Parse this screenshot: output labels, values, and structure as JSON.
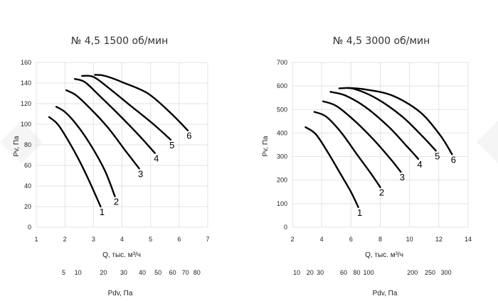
{
  "chart_data": [
    {
      "type": "line",
      "title": "№ 4,5 1500 об/мин",
      "xlabel": "Q, тыс. м³/ч",
      "ylabel": "Pv, Па",
      "xlim": [
        1,
        7
      ],
      "ylim": [
        0,
        160
      ],
      "x_ticks": [
        "1",
        "2",
        "3",
        "4",
        "5",
        "6",
        "7"
      ],
      "y_ticks": [
        "0",
        "20",
        "40",
        "60",
        "80",
        "100",
        "120",
        "140",
        "160"
      ],
      "grid": true,
      "secondary_axis": {
        "label": "Pdv, Па",
        "ticks": [
          {
            "label": "5",
            "q": 1.96
          },
          {
            "label": "10",
            "q": 2.46
          },
          {
            "label": "20",
            "q": 3.35
          },
          {
            "label": "30",
            "q": 4.06
          },
          {
            "label": "40",
            "q": 4.71
          },
          {
            "label": "50",
            "q": 5.26
          },
          {
            "label": "60",
            "q": 5.77
          },
          {
            "label": "70",
            "q": 6.22
          },
          {
            "label": "80",
            "q": 6.62
          }
        ]
      },
      "series": [
        {
          "name": "1",
          "x": [
            1.45,
            1.75,
            2.1,
            2.5,
            2.9,
            3.25
          ],
          "y": [
            107,
            100,
            85,
            65,
            42,
            20
          ]
        },
        {
          "name": "2",
          "x": [
            1.7,
            2.0,
            2.4,
            2.9,
            3.4,
            3.75
          ],
          "y": [
            117,
            112,
            100,
            80,
            55,
            30
          ]
        },
        {
          "name": "3",
          "x": [
            2.05,
            2.4,
            2.9,
            3.5,
            4.1,
            4.6
          ],
          "y": [
            133,
            128,
            115,
            97,
            75,
            57
          ]
        },
        {
          "name": "4",
          "x": [
            2.35,
            2.7,
            3.2,
            3.9,
            4.6,
            5.15
          ],
          "y": [
            144,
            141,
            128,
            109,
            89,
            72
          ]
        },
        {
          "name": "5",
          "x": [
            2.6,
            3.0,
            3.5,
            4.3,
            5.1,
            5.7
          ],
          "y": [
            147,
            146,
            136,
            118,
            100,
            85
          ]
        },
        {
          "name": "6",
          "x": [
            3.05,
            3.4,
            4.0,
            4.9,
            5.7,
            6.3
          ],
          "y": [
            148,
            147,
            141,
            130,
            111,
            94
          ]
        }
      ]
    },
    {
      "type": "line",
      "title": "№ 4,5 3000 об/мин",
      "xlabel": "Q, тыс. м³/ч",
      "ylabel": "Pv, Па",
      "xlim": [
        2,
        14
      ],
      "ylim": [
        0,
        700
      ],
      "x_ticks": [
        "2",
        "4",
        "6",
        "8",
        "10",
        "12",
        "14"
      ],
      "y_ticks": [
        "0",
        "100",
        "200",
        "300",
        "400",
        "500",
        "600",
        "700"
      ],
      "grid": true,
      "secondary_axis": {
        "label": "Pdv, Па",
        "ticks": [
          {
            "label": "10",
            "q": 2.3
          },
          {
            "label": "20",
            "q": 3.2
          },
          {
            "label": "30",
            "q": 3.9
          },
          {
            "label": "60",
            "q": 5.5
          },
          {
            "label": "80",
            "q": 6.4
          },
          {
            "label": "100",
            "q": 7.2
          },
          {
            "label": "200",
            "q": 10.2
          },
          {
            "label": "250",
            "q": 11.4
          },
          {
            "label": "300",
            "q": 12.5
          }
        ]
      },
      "series": [
        {
          "name": "1",
          "x": [
            2.9,
            3.6,
            4.4,
            5.3,
            6.0,
            6.5
          ],
          "y": [
            425,
            395,
            320,
            225,
            150,
            85
          ]
        },
        {
          "name": "2",
          "x": [
            3.5,
            4.3,
            5.3,
            6.4,
            7.4,
            8.0
          ],
          "y": [
            490,
            470,
            405,
            310,
            225,
            170
          ]
        },
        {
          "name": "3",
          "x": [
            4.1,
            5.0,
            6.2,
            7.5,
            8.7,
            9.4
          ],
          "y": [
            535,
            515,
            455,
            375,
            290,
            235
          ]
        },
        {
          "name": "4",
          "x": [
            4.6,
            5.6,
            7.0,
            8.6,
            9.8,
            10.6
          ],
          "y": [
            575,
            560,
            510,
            425,
            345,
            290
          ]
        },
        {
          "name": "5",
          "x": [
            5.2,
            6.2,
            7.8,
            9.5,
            10.9,
            11.8
          ],
          "y": [
            590,
            588,
            545,
            470,
            385,
            325
          ]
        },
        {
          "name": "6",
          "x": [
            5.8,
            7.0,
            8.8,
            10.7,
            12.1,
            12.9
          ],
          "y": [
            592,
            585,
            560,
            490,
            390,
            310
          ]
        }
      ]
    }
  ]
}
